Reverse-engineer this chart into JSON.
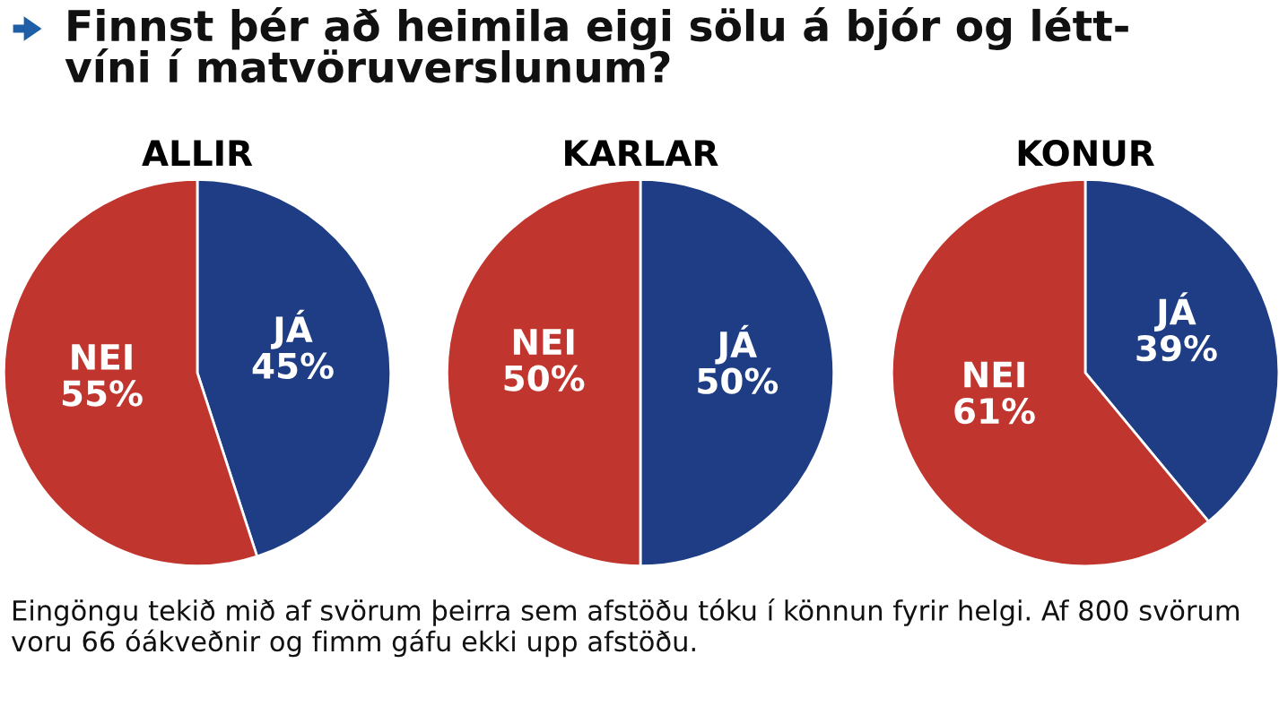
{
  "chart_data": [
    {
      "type": "pie",
      "title": "ALLIR",
      "categories": [
        "JÁ",
        "NEI"
      ],
      "values": [
        45,
        55
      ],
      "colors": [
        "#1e3d85",
        "#c0362f"
      ],
      "value_labels": [
        "45%",
        "55%"
      ],
      "annotations": [
        "Finnst þér að heimila eigi sölu á bjór og létt-\nvíni í matvöruverslunum?"
      ]
    },
    {
      "type": "pie",
      "title": "KARLAR",
      "categories": [
        "JÁ",
        "NEI"
      ],
      "values": [
        50,
        50
      ],
      "colors": [
        "#1e3d85",
        "#c0362f"
      ],
      "value_labels": [
        "50%",
        "50%"
      ]
    },
    {
      "type": "pie",
      "title": "KONUR",
      "categories": [
        "JÁ",
        "NEI"
      ],
      "values": [
        39,
        61
      ],
      "colors": [
        "#1e3d85",
        "#c0362f"
      ],
      "value_labels": [
        "39%",
        "61%"
      ],
      "annotations": [
        "Eingöngu tekið mið af svörum þeirra sem afstöðu tóku í könnun fyrir helgi. Af 800 svörum voru 66 óákveðnir og fimm gáfu ekki upp afstöðu."
      ]
    }
  ]
}
